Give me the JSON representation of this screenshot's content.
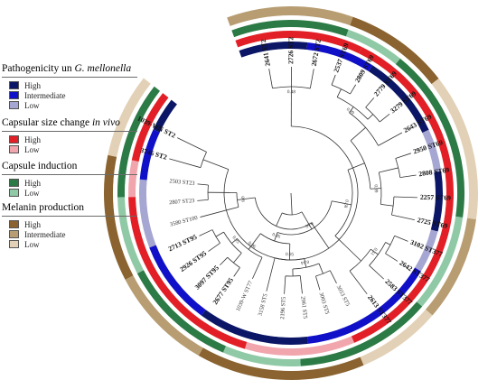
{
  "colors": {
    "path_high": "#0b1666",
    "path_intermediate": "#1010c8",
    "path_low": "#a6a6d2",
    "caps_high": "#e21f26",
    "caps_low": "#f1a6ae",
    "ind_high": "#2c7a45",
    "ind_low": "#8fc9a6",
    "mel_high": "#8a6330",
    "mel_intermediate": "#b89d72",
    "mel_low": "#e2d1b6",
    "branch": "#333333"
  },
  "legend": [
    {
      "title_pre": "Pathogenicity un ",
      "title_it": "G. mellonella",
      "title_post": "",
      "items": [
        {
          "label": "High",
          "color": "#0b1666"
        },
        {
          "label": "Intermediate",
          "color": "#1010c8"
        },
        {
          "label": "Low",
          "color": "#a6a6d2"
        }
      ]
    },
    {
      "title_pre": "Capsular size change ",
      "title_it": "in vivo",
      "title_post": "",
      "items": [
        {
          "label": "High",
          "color": "#e21f26"
        },
        {
          "label": "Low",
          "color": "#f1a6ae"
        }
      ]
    },
    {
      "title_pre": "Capsule induction",
      "title_it": "",
      "title_post": "",
      "items": [
        {
          "label": "High",
          "color": "#2c7a45"
        },
        {
          "label": "Low",
          "color": "#8fc9a6"
        }
      ]
    },
    {
      "title_pre": "Melanin production",
      "title_it": "",
      "title_post": "",
      "items": [
        {
          "label": "High",
          "color": "#8a6330"
        },
        {
          "label": "Intermediate",
          "color": "#b89d72"
        },
        {
          "label": "Low",
          "color": "#e2d1b6"
        }
      ]
    }
  ],
  "leaves": [
    {
      "label": "2641 ST2",
      "bold": true
    },
    {
      "label": "2726 ST2",
      "bold": true
    },
    {
      "label": "2672 ST2",
      "bold": true
    },
    {
      "label": "2537 ST69",
      "bold": true
    },
    {
      "label": "2809 ST69",
      "bold": true
    },
    {
      "label": "2779 ST69",
      "bold": true
    },
    {
      "label": "3279 ST69",
      "bold": true
    },
    {
      "label": "2643 ST69",
      "bold": true
    },
    {
      "label": "2950 ST69",
      "bold": true
    },
    {
      "label": "2808 ST69",
      "bold": true
    },
    {
      "label": "2257 ST69",
      "bold": true
    },
    {
      "label": "2725 ST69",
      "bold": true
    },
    {
      "label": "3102 ST377",
      "bold": true
    },
    {
      "label": "2642 ST377",
      "bold": true
    },
    {
      "label": "2583 ST377",
      "bold": true
    },
    {
      "label": "2613 ST377",
      "bold": true
    },
    {
      "label": "3053 ST5",
      "bold": false
    },
    {
      "label": "3003 ST5",
      "bold": false
    },
    {
      "label": "2961 ST5",
      "bold": false
    },
    {
      "label": "2196 ST5",
      "bold": false
    },
    {
      "label": "3158 ST5",
      "bold": false
    },
    {
      "label": "1039-W ST77",
      "bold": false
    },
    {
      "label": "2677 ST95",
      "bold": true
    },
    {
      "label": "3097 ST95",
      "bold": true
    },
    {
      "label": "2926 ST95",
      "bold": true
    },
    {
      "label": "2713 ST95",
      "bold": true
    },
    {
      "label": "3580 ST100",
      "bold": false
    },
    {
      "label": "2807 ST23",
      "bold": false
    },
    {
      "label": "2503 ST23",
      "bold": false
    },
    {
      "label": "3746 ST2",
      "bold": true
    },
    {
      "label": "1039-WN ST2",
      "bold": true
    }
  ],
  "bootstrap": [
    "0.48",
    "0.99",
    "0.99",
    "0.58",
    "0.95",
    "0.64",
    "0.95",
    "0.96",
    "0.86",
    "0.51",
    "0.56",
    "0.6"
  ],
  "rings": {
    "pathogenicity": [
      {
        "level": "high",
        "pct": 8
      },
      {
        "level": "intermediate",
        "pct": 8
      },
      {
        "level": "high",
        "pct": 10
      },
      {
        "level": "low",
        "pct": 5
      },
      {
        "level": "high",
        "pct": 7
      },
      {
        "level": "low",
        "pct": 5
      },
      {
        "level": "intermediate",
        "pct": 16
      },
      {
        "level": "high",
        "pct": 13
      },
      {
        "level": "intermediate",
        "pct": 10
      },
      {
        "level": "low",
        "pct": 8
      },
      {
        "level": "intermediate",
        "pct": 6
      },
      {
        "level": "high",
        "pct": 4
      }
    ],
    "capsular": [
      {
        "level": "high",
        "pct": 14
      },
      {
        "level": "high",
        "pct": 40
      },
      {
        "level": "low",
        "pct": 12
      },
      {
        "level": "high",
        "pct": 22
      },
      {
        "level": "low",
        "pct": 4
      },
      {
        "level": "high",
        "pct": 8
      }
    ],
    "induction": [
      {
        "level": "high",
        "pct": 12
      },
      {
        "level": "low",
        "pct": 6
      },
      {
        "level": "high",
        "pct": 18
      },
      {
        "level": "low",
        "pct": 10
      },
      {
        "level": "high",
        "pct": 14
      },
      {
        "level": "low",
        "pct": 8
      },
      {
        "level": "high",
        "pct": 12
      },
      {
        "level": "low",
        "pct": 8
      },
      {
        "level": "high",
        "pct": 12
      }
    ],
    "melanin": [
      {
        "level": "intermediate",
        "pct": 12
      },
      {
        "level": "high",
        "pct": 10
      },
      {
        "level": "low",
        "pct": 14
      },
      {
        "level": "intermediate",
        "pct": 10
      },
      {
        "level": "low",
        "pct": 8
      },
      {
        "level": "high",
        "pct": 16
      },
      {
        "level": "intermediate",
        "pct": 10
      },
      {
        "level": "high",
        "pct": 12
      },
      {
        "level": "low",
        "pct": 8
      }
    ]
  }
}
